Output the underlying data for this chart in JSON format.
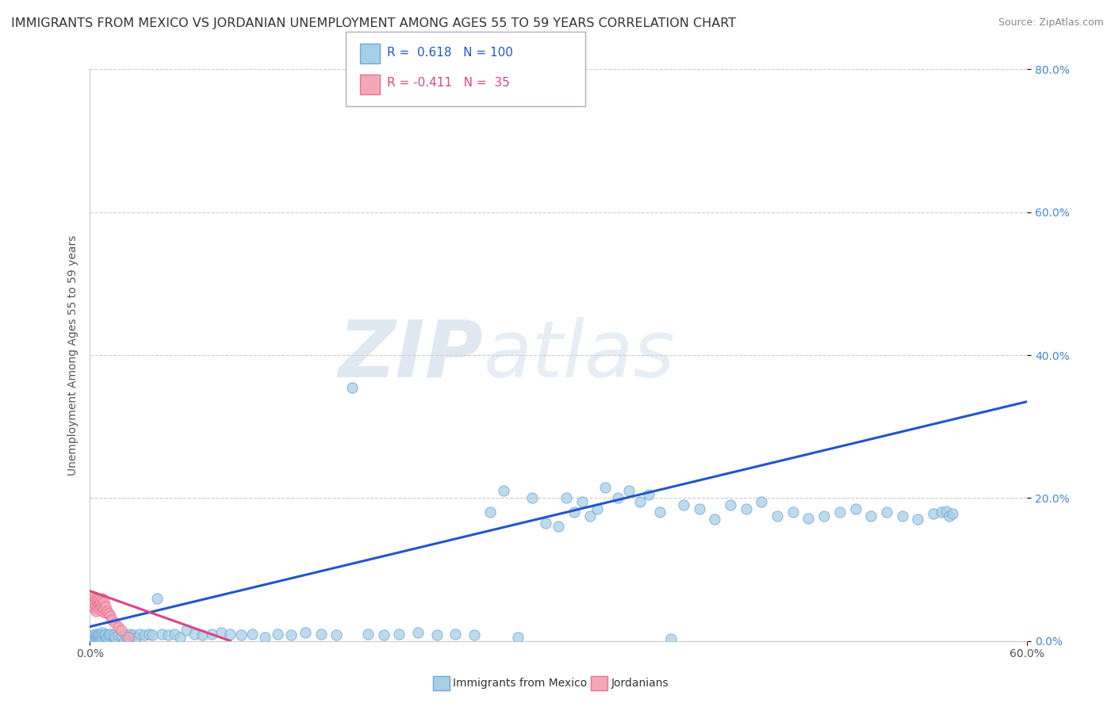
{
  "title": "IMMIGRANTS FROM MEXICO VS JORDANIAN UNEMPLOYMENT AMONG AGES 55 TO 59 YEARS CORRELATION CHART",
  "source": "Source: ZipAtlas.com",
  "ylabel": "Unemployment Among Ages 55 to 59 years",
  "xlim": [
    0.0,
    0.6
  ],
  "ylim": [
    0.0,
    0.8
  ],
  "ytick_positions": [
    0.0,
    0.2,
    0.4,
    0.6,
    0.8
  ],
  "ytick_labels": [
    "0.0%",
    "20.0%",
    "40.0%",
    "60.0%",
    "80.0%"
  ],
  "xtick_positions": [
    0.0,
    0.6
  ],
  "xtick_labels": [
    "0.0%",
    "60.0%"
  ],
  "blue_color": "#a8cfe8",
  "pink_color": "#f4a7b9",
  "blue_edge_color": "#6fa8d4",
  "pink_edge_color": "#e87090",
  "blue_line_color": "#2255cc",
  "pink_line_color": "#dd4488",
  "watermark_zip": "ZIP",
  "watermark_atlas": "atlas",
  "blue_R": 0.618,
  "blue_N": 100,
  "pink_R": -0.411,
  "pink_N": 35,
  "title_fontsize": 11.5,
  "axis_label_fontsize": 10,
  "tick_fontsize": 10,
  "legend_fontsize": 11,
  "source_fontsize": 9,
  "background_color": "#ffffff",
  "grid_color": "#cccccc",
  "blue_x": [
    0.001,
    0.002,
    0.003,
    0.003,
    0.004,
    0.004,
    0.005,
    0.005,
    0.005,
    0.006,
    0.006,
    0.007,
    0.007,
    0.008,
    0.008,
    0.009,
    0.01,
    0.01,
    0.011,
    0.012,
    0.013,
    0.015,
    0.016,
    0.018,
    0.02,
    0.022,
    0.024,
    0.026,
    0.028,
    0.03,
    0.032,
    0.035,
    0.038,
    0.04,
    0.043,
    0.046,
    0.05,
    0.054,
    0.058,
    0.062,
    0.067,
    0.072,
    0.078,
    0.084,
    0.09,
    0.097,
    0.104,
    0.112,
    0.12,
    0.129,
    0.138,
    0.148,
    0.158,
    0.168,
    0.178,
    0.188,
    0.198,
    0.21,
    0.222,
    0.234,
    0.246,
    0.256,
    0.265,
    0.274,
    0.283,
    0.292,
    0.3,
    0.305,
    0.31,
    0.315,
    0.32,
    0.325,
    0.33,
    0.338,
    0.345,
    0.352,
    0.358,
    0.365,
    0.372,
    0.38,
    0.39,
    0.4,
    0.41,
    0.42,
    0.43,
    0.44,
    0.45,
    0.46,
    0.47,
    0.48,
    0.49,
    0.5,
    0.51,
    0.52,
    0.53,
    0.54,
    0.545,
    0.548,
    0.55,
    0.552
  ],
  "blue_y": [
    0.005,
    0.008,
    0.003,
    0.06,
    0.005,
    0.01,
    0.0,
    0.005,
    0.008,
    0.005,
    0.01,
    0.003,
    0.008,
    0.005,
    0.012,
    0.008,
    0.005,
    0.01,
    0.005,
    0.008,
    0.01,
    0.008,
    0.005,
    0.008,
    0.008,
    0.01,
    0.005,
    0.01,
    0.008,
    0.005,
    0.01,
    0.008,
    0.01,
    0.008,
    0.06,
    0.01,
    0.008,
    0.01,
    0.005,
    0.015,
    0.01,
    0.008,
    0.01,
    0.012,
    0.01,
    0.008,
    0.01,
    0.005,
    0.01,
    0.008,
    0.012,
    0.01,
    0.008,
    0.355,
    0.01,
    0.008,
    0.01,
    0.012,
    0.008,
    0.01,
    0.008,
    0.18,
    0.21,
    0.005,
    0.2,
    0.165,
    0.16,
    0.2,
    0.18,
    0.195,
    0.175,
    0.185,
    0.215,
    0.2,
    0.21,
    0.195,
    0.205,
    0.18,
    0.003,
    0.19,
    0.185,
    0.17,
    0.19,
    0.185,
    0.195,
    0.175,
    0.18,
    0.172,
    0.175,
    0.18,
    0.185,
    0.175,
    0.18,
    0.175,
    0.17,
    0.178,
    0.18,
    0.182,
    0.175,
    0.178
  ],
  "pink_x": [
    0.001,
    0.001,
    0.002,
    0.002,
    0.002,
    0.003,
    0.003,
    0.003,
    0.004,
    0.004,
    0.004,
    0.005,
    0.005,
    0.005,
    0.006,
    0.006,
    0.006,
    0.007,
    0.007,
    0.007,
    0.008,
    0.008,
    0.008,
    0.009,
    0.009,
    0.01,
    0.01,
    0.011,
    0.012,
    0.013,
    0.014,
    0.016,
    0.018,
    0.02,
    0.025
  ],
  "pink_y": [
    0.05,
    0.055,
    0.048,
    0.06,
    0.052,
    0.045,
    0.055,
    0.062,
    0.05,
    0.058,
    0.042,
    0.048,
    0.055,
    0.06,
    0.052,
    0.045,
    0.058,
    0.05,
    0.048,
    0.055,
    0.042,
    0.048,
    0.06,
    0.045,
    0.055,
    0.04,
    0.048,
    0.042,
    0.038,
    0.035,
    0.03,
    0.025,
    0.02,
    0.015,
    0.005
  ],
  "blue_line_x": [
    0.0,
    0.6
  ],
  "blue_line_y": [
    0.02,
    0.335
  ],
  "pink_line_x": [
    0.0,
    0.09
  ],
  "pink_line_y": [
    0.07,
    0.0
  ]
}
